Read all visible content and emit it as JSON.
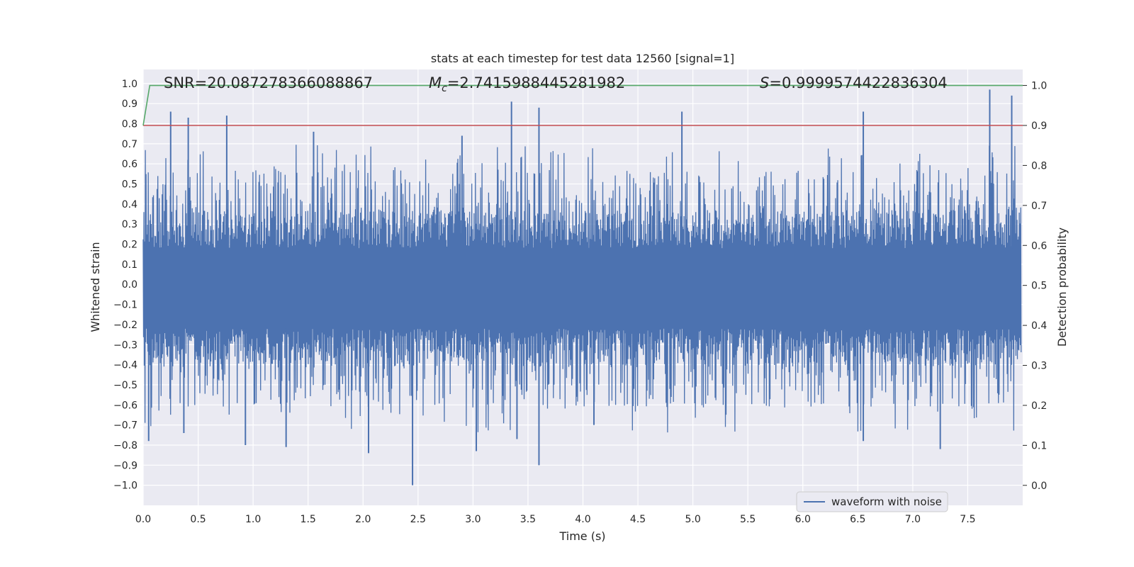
{
  "chart_data": {
    "type": "line",
    "title": "stats at each timestep for test data 12560 [signal=1]",
    "xlabel": "Time (s)",
    "ylabel_left": "Whitened strain",
    "ylabel_right": "Detection probability",
    "xlim": [
      0.0,
      8.0
    ],
    "ylim_left": [
      -1.1,
      1.07
    ],
    "ylim_right": [
      -0.05,
      1.04
    ],
    "x_ticks": [
      0.0,
      0.5,
      1.0,
      1.5,
      2.0,
      2.5,
      3.0,
      3.5,
      4.0,
      4.5,
      5.0,
      5.5,
      6.0,
      6.5,
      7.0,
      7.5
    ],
    "x_tick_labels": [
      "0.0",
      "0.5",
      "1.0",
      "1.5",
      "2.0",
      "2.5",
      "3.0",
      "3.5",
      "4.0",
      "4.5",
      "5.0",
      "5.5",
      "6.0",
      "6.5",
      "7.0",
      "7.5"
    ],
    "y_left_ticks": [
      -1.0,
      -0.9,
      -0.8,
      -0.7,
      -0.6,
      -0.5,
      -0.4,
      -0.3,
      -0.2,
      -0.1,
      0.0,
      0.1,
      0.2,
      0.3,
      0.4,
      0.5,
      0.6,
      0.7,
      0.8,
      0.9,
      1.0
    ],
    "y_left_tick_labels": [
      "−1.0",
      "−0.9",
      "−0.8",
      "−0.7",
      "−0.6",
      "−0.5",
      "−0.4",
      "−0.3",
      "−0.2",
      "−0.1",
      "0.0",
      "0.1",
      "0.2",
      "0.3",
      "0.4",
      "0.5",
      "0.6",
      "0.7",
      "0.8",
      "0.9",
      "1.0"
    ],
    "y_right_ticks": [
      0.0,
      0.1,
      0.2,
      0.3,
      0.4,
      0.5,
      0.6,
      0.7,
      0.8,
      0.9,
      1.0
    ],
    "y_right_tick_labels": [
      "0.0",
      "0.1",
      "0.2",
      "0.3",
      "0.4",
      "0.5",
      "0.6",
      "0.7",
      "0.8",
      "0.9",
      "1.0"
    ],
    "annotations": {
      "snr": "SNR=20.087278366088867",
      "mc_symbol": "M",
      "mc_subscript": "c",
      "mc_value": "=2.7415988445281982",
      "s_symbol": "S",
      "s_value": "=0.9999574422836304"
    },
    "series": [
      {
        "name": "waveform with noise",
        "axis": "left",
        "color": "#4c72b0",
        "description_only": false,
        "band_core": [
          -0.22,
          0.18
        ],
        "band_dense": [
          -0.42,
          0.37
        ],
        "peak_spikes": [
          {
            "x": 0.25,
            "y": 0.86
          },
          {
            "x": 0.41,
            "y": 0.83
          },
          {
            "x": 0.76,
            "y": 0.84
          },
          {
            "x": 1.55,
            "y": 0.76
          },
          {
            "x": 2.9,
            "y": 0.74
          },
          {
            "x": 3.35,
            "y": 0.91
          },
          {
            "x": 3.6,
            "y": 0.88
          },
          {
            "x": 4.9,
            "y": 0.86
          },
          {
            "x": 6.55,
            "y": 0.86
          },
          {
            "x": 7.7,
            "y": 0.97
          },
          {
            "x": 7.9,
            "y": 0.94
          }
        ],
        "trough_spikes": [
          {
            "x": 0.05,
            "y": -0.78
          },
          {
            "x": 0.37,
            "y": -0.74
          },
          {
            "x": 0.93,
            "y": -0.8
          },
          {
            "x": 1.3,
            "y": -0.81
          },
          {
            "x": 2.05,
            "y": -0.84
          },
          {
            "x": 2.45,
            "y": -1.0
          },
          {
            "x": 3.03,
            "y": -0.83
          },
          {
            "x": 3.4,
            "y": -0.77
          },
          {
            "x": 3.6,
            "y": -0.9
          },
          {
            "x": 4.1,
            "y": -0.7
          },
          {
            "x": 6.55,
            "y": -0.78
          },
          {
            "x": 7.25,
            "y": -0.82
          }
        ]
      },
      {
        "name": "detection probability",
        "axis": "right",
        "color": "#55a868",
        "x": [
          0.0,
          0.06,
          8.0
        ],
        "values": [
          0.9,
          1.0,
          1.0
        ]
      },
      {
        "name": "threshold",
        "axis": "right",
        "color": "#c44e52",
        "x": [
          0.0,
          8.0
        ],
        "values": [
          0.9,
          0.9
        ]
      }
    ],
    "legend": {
      "placement": "lower-right",
      "entries": [
        {
          "label": "waveform with noise",
          "color": "#4c72b0"
        }
      ]
    },
    "grid": true,
    "background": "#eaeaf2"
  }
}
